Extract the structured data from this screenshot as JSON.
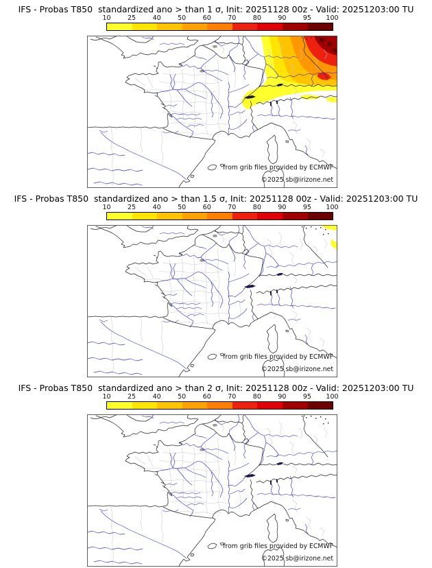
{
  "colorbar": {
    "tick_labels": [
      "10",
      "25",
      "40",
      "50",
      "60",
      "70",
      "80",
      "90",
      "95",
      "100"
    ],
    "segment_colors": [
      "#FFFF2E",
      "#FFE500",
      "#FFC300",
      "#FFA100",
      "#FF8000",
      "#EE2010",
      "#E00008",
      "#A00000",
      "#6B0000"
    ],
    "border_color": "#000000"
  },
  "panels": [
    {
      "title": "IFS - Probas T850  standardized ano > than 1 σ, Init: 20251128 00z - Valid: 20251203:00 TU",
      "threshold": "1 σ"
    },
    {
      "title": "IFS - Probas T850  standardized ano > than 1.5 σ, Init: 20251128 00z - Valid: 20251203:00 TU",
      "threshold": "1.5 σ"
    },
    {
      "title": "IFS - Probas T850  standardized ano > than 2 σ, Init: 20251128 00z - Valid: 20251203:00 TU",
      "threshold": "2 σ"
    }
  ],
  "credits": {
    "line1": "from grib files provided by ECMWF",
    "line2": "©2025 sb@irizone.net"
  },
  "map_colors": {
    "coast": "#2a2a2a",
    "department_lines": "#cacaca",
    "rivers": "#3434dd",
    "lakes": "#1b1b4d",
    "frame": "#4d4d4d"
  },
  "chart_data": [
    {
      "type": "heatmap",
      "title": "IFS - Probas T850  standardized ano > than 1 σ, Init: 20251128 00z - Valid: 20251203:00 TU",
      "model": "IFS",
      "variable": "T850",
      "statistic": "probability that standardized anomaly > 1 σ",
      "init": "20251128 00z",
      "valid": "20251203:00 TU",
      "units": "%",
      "region": "France and surrounding western Europe",
      "scale_breaks": [
        10,
        25,
        40,
        50,
        60,
        70,
        80,
        90,
        95,
        100
      ],
      "scale_colors": [
        "#FFFF2E",
        "#FFE500",
        "#FFC300",
        "#FFA100",
        "#FF8000",
        "#EE2010",
        "#E00008",
        "#A00000",
        "#6B0000"
      ],
      "legend_position": "top",
      "shading": "Large shaded area over the NE of the domain (NE France, SW Germany, Alps rim): 10-25% yellow band from Champagne down along the Jura/Alps to Lake Geneva, increasing through 25-70% orange over SW Germany to 70-95% red near the NE corner with small >95% dark-red cores; remainder of the domain below 10%."
    },
    {
      "type": "heatmap",
      "title": "IFS - Probas T850  standardized ano > than 1.5 σ, Init: 20251128 00z - Valid: 20251203:00 TU",
      "model": "IFS",
      "variable": "T850",
      "statistic": "probability that standardized anomaly > 1.5 σ",
      "init": "20251128 00z",
      "valid": "20251203:00 TU",
      "units": "%",
      "region": "France and surrounding western Europe",
      "scale_breaks": [
        10,
        25,
        40,
        50,
        60,
        70,
        80,
        90,
        95,
        100
      ],
      "scale_colors": [
        "#FFFF2E",
        "#FFE500",
        "#FFC300",
        "#FFA100",
        "#FF8000",
        "#EE2010",
        "#E00008",
        "#A00000",
        "#6B0000"
      ],
      "legend_position": "top",
      "shading": "Only two small 10-25% yellow patches: one in the extreme NE corner and one on the eastern edge; everywhere else below 10%."
    },
    {
      "type": "heatmap",
      "title": "IFS - Probas T850  standardized ano > than 2 σ, Init: 20251128 00z - Valid: 20251203:00 TU",
      "model": "IFS",
      "variable": "T850",
      "statistic": "probability that standardized anomaly > 2 σ",
      "init": "20251128 00z",
      "valid": "20251203:00 TU",
      "units": "%",
      "region": "France and surrounding western Europe",
      "scale_breaks": [
        10,
        25,
        40,
        50,
        60,
        70,
        80,
        90,
        95,
        100
      ],
      "scale_colors": [
        "#FFFF2E",
        "#FFE500",
        "#FFC300",
        "#FFA100",
        "#FF8000",
        "#EE2010",
        "#E00008",
        "#A00000",
        "#6B0000"
      ],
      "legend_position": "top",
      "shading": "No area reaches 10%; the map is unshaded."
    }
  ]
}
